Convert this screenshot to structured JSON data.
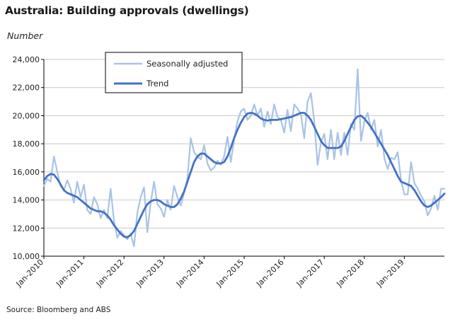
{
  "chart_data": {
    "type": "line",
    "title": "Australia: Building approvals (dwellings)",
    "ylabel": "Number",
    "ylim": [
      10000,
      24000
    ],
    "yticks": [
      10000,
      12000,
      14000,
      16000,
      18000,
      20000,
      22000,
      24000
    ],
    "ytick_labels": [
      "10,000",
      "12,000",
      "14,000",
      "16,000",
      "18,000",
      "20,000",
      "22,000",
      "24,000"
    ],
    "xlim": [
      "2010-01",
      "2020-01"
    ],
    "xticks": [
      "2010-01",
      "2011-01",
      "2012-01",
      "2013-01",
      "2014-01",
      "2015-01",
      "2016-01",
      "2017-01",
      "2018-01",
      "2019-01"
    ],
    "xtick_labels": [
      "Jan-2010",
      "Jan-2011",
      "Jan-2012",
      "Jan-2013",
      "Jan-2014",
      "Jan-2015",
      "Jan-2016",
      "Jan-2017",
      "Jan-2018",
      "Jan-2019"
    ],
    "grid": true,
    "legend_position": "top-center",
    "series": [
      {
        "name": "Seasonally adjusted",
        "color": "#a8c3e6",
        "points": [
          [
            "2010-01",
            15000
          ],
          [
            "2010-02",
            15500
          ],
          [
            "2010-03",
            15300
          ],
          [
            "2010-04",
            17100
          ],
          [
            "2010-05",
            16000
          ],
          [
            "2010-06",
            15000
          ],
          [
            "2010-07",
            14700
          ],
          [
            "2010-08",
            15400
          ],
          [
            "2010-09",
            14800
          ],
          [
            "2010-10",
            13800
          ],
          [
            "2010-11",
            15300
          ],
          [
            "2010-12",
            14200
          ],
          [
            "2011-01",
            15100
          ],
          [
            "2011-02",
            13300
          ],
          [
            "2011-03",
            13000
          ],
          [
            "2011-04",
            14200
          ],
          [
            "2011-05",
            13700
          ],
          [
            "2011-06",
            12700
          ],
          [
            "2011-07",
            13300
          ],
          [
            "2011-08",
            12700
          ],
          [
            "2011-09",
            14800
          ],
          [
            "2011-10",
            12500
          ],
          [
            "2011-11",
            11300
          ],
          [
            "2011-12",
            11800
          ],
          [
            "2012-01",
            11500
          ],
          [
            "2012-02",
            11200
          ],
          [
            "2012-03",
            11600
          ],
          [
            "2012-04",
            10700
          ],
          [
            "2012-05",
            13100
          ],
          [
            "2012-06",
            14200
          ],
          [
            "2012-07",
            14900
          ],
          [
            "2012-08",
            11700
          ],
          [
            "2012-09",
            13800
          ],
          [
            "2012-10",
            15300
          ],
          [
            "2012-11",
            13700
          ],
          [
            "2012-12",
            13400
          ],
          [
            "2013-01",
            12800
          ],
          [
            "2013-02",
            14000
          ],
          [
            "2013-03",
            13300
          ],
          [
            "2013-04",
            15000
          ],
          [
            "2013-05",
            14200
          ],
          [
            "2013-06",
            13600
          ],
          [
            "2013-07",
            14500
          ],
          [
            "2013-08",
            15500
          ],
          [
            "2013-09",
            18400
          ],
          [
            "2013-10",
            17400
          ],
          [
            "2013-11",
            17100
          ],
          [
            "2013-12",
            16900
          ],
          [
            "2014-01",
            17900
          ],
          [
            "2014-02",
            16600
          ],
          [
            "2014-03",
            16100
          ],
          [
            "2014-04",
            16300
          ],
          [
            "2014-05",
            16800
          ],
          [
            "2014-06",
            16500
          ],
          [
            "2014-07",
            17100
          ],
          [
            "2014-08",
            18500
          ],
          [
            "2014-09",
            16700
          ],
          [
            "2014-10",
            18300
          ],
          [
            "2014-11",
            19600
          ],
          [
            "2014-12",
            20300
          ],
          [
            "2015-01",
            20500
          ],
          [
            "2015-02",
            19700
          ],
          [
            "2015-03",
            20000
          ],
          [
            "2015-04",
            20800
          ],
          [
            "2015-05",
            20000
          ],
          [
            "2015-06",
            20500
          ],
          [
            "2015-07",
            19200
          ],
          [
            "2015-08",
            20300
          ],
          [
            "2015-09",
            19400
          ],
          [
            "2015-10",
            20800
          ],
          [
            "2015-11",
            19900
          ],
          [
            "2015-12",
            19700
          ],
          [
            "2016-01",
            18800
          ],
          [
            "2016-02",
            20400
          ],
          [
            "2016-03",
            18900
          ],
          [
            "2016-04",
            20800
          ],
          [
            "2016-05",
            20500
          ],
          [
            "2016-06",
            20100
          ],
          [
            "2016-07",
            18400
          ],
          [
            "2016-08",
            21000
          ],
          [
            "2016-09",
            21600
          ],
          [
            "2016-10",
            19600
          ],
          [
            "2016-11",
            16500
          ],
          [
            "2016-12",
            18100
          ],
          [
            "2017-01",
            18700
          ],
          [
            "2017-02",
            16900
          ],
          [
            "2017-03",
            19000
          ],
          [
            "2017-04",
            16900
          ],
          [
            "2017-05",
            18800
          ],
          [
            "2017-06",
            17200
          ],
          [
            "2017-07",
            18800
          ],
          [
            "2017-08",
            17200
          ],
          [
            "2017-09",
            19400
          ],
          [
            "2017-10",
            19000
          ],
          [
            "2017-11",
            23300
          ],
          [
            "2017-12",
            18200
          ],
          [
            "2018-01",
            19600
          ],
          [
            "2018-02",
            20200
          ],
          [
            "2018-03",
            19000
          ],
          [
            "2018-04",
            19700
          ],
          [
            "2018-05",
            17800
          ],
          [
            "2018-06",
            19000
          ],
          [
            "2018-07",
            17000
          ],
          [
            "2018-08",
            16200
          ],
          [
            "2018-09",
            17000
          ],
          [
            "2018-10",
            16900
          ],
          [
            "2018-11",
            17400
          ],
          [
            "2018-12",
            15400
          ],
          [
            "2019-01",
            14400
          ],
          [
            "2019-02",
            14400
          ],
          [
            "2019-03",
            16700
          ],
          [
            "2019-04",
            15200
          ],
          [
            "2019-05",
            14800
          ],
          [
            "2019-06",
            14300
          ],
          [
            "2019-07",
            13900
          ],
          [
            "2019-08",
            12900
          ],
          [
            "2019-09",
            13400
          ],
          [
            "2019-10",
            14300
          ],
          [
            "2019-11",
            13300
          ],
          [
            "2019-12",
            14800
          ],
          [
            "2020-01",
            14800
          ]
        ]
      },
      {
        "name": "Trend",
        "color": "#4472c4",
        "points": [
          [
            "2010-01",
            15400
          ],
          [
            "2010-02",
            15700
          ],
          [
            "2010-03",
            15850
          ],
          [
            "2010-04",
            15800
          ],
          [
            "2010-05",
            15500
          ],
          [
            "2010-06",
            15100
          ],
          [
            "2010-07",
            14700
          ],
          [
            "2010-08",
            14500
          ],
          [
            "2010-09",
            14400
          ],
          [
            "2010-10",
            14300
          ],
          [
            "2010-11",
            14200
          ],
          [
            "2010-12",
            14000
          ],
          [
            "2011-01",
            13800
          ],
          [
            "2011-02",
            13600
          ],
          [
            "2011-03",
            13400
          ],
          [
            "2011-04",
            13300
          ],
          [
            "2011-05",
            13200
          ],
          [
            "2011-06",
            13200
          ],
          [
            "2011-07",
            13100
          ],
          [
            "2011-08",
            12900
          ],
          [
            "2011-09",
            12600
          ],
          [
            "2011-10",
            12200
          ],
          [
            "2011-11",
            11900
          ],
          [
            "2011-12",
            11600
          ],
          [
            "2012-01",
            11400
          ],
          [
            "2012-02",
            11350
          ],
          [
            "2012-03",
            11500
          ],
          [
            "2012-04",
            11800
          ],
          [
            "2012-05",
            12300
          ],
          [
            "2012-06",
            12800
          ],
          [
            "2012-07",
            13300
          ],
          [
            "2012-08",
            13700
          ],
          [
            "2012-09",
            13900
          ],
          [
            "2012-10",
            14000
          ],
          [
            "2012-11",
            14000
          ],
          [
            "2012-12",
            13900
          ],
          [
            "2013-01",
            13700
          ],
          [
            "2013-02",
            13600
          ],
          [
            "2013-03",
            13500
          ],
          [
            "2013-04",
            13500
          ],
          [
            "2013-05",
            13700
          ],
          [
            "2013-06",
            14100
          ],
          [
            "2013-07",
            14600
          ],
          [
            "2013-08",
            15300
          ],
          [
            "2013-09",
            16000
          ],
          [
            "2013-10",
            16700
          ],
          [
            "2013-11",
            17100
          ],
          [
            "2013-12",
            17300
          ],
          [
            "2014-01",
            17300
          ],
          [
            "2014-02",
            17100
          ],
          [
            "2014-03",
            16900
          ],
          [
            "2014-04",
            16700
          ],
          [
            "2014-05",
            16600
          ],
          [
            "2014-06",
            16600
          ],
          [
            "2014-07",
            16700
          ],
          [
            "2014-08",
            17100
          ],
          [
            "2014-09",
            17700
          ],
          [
            "2014-10",
            18400
          ],
          [
            "2014-11",
            19000
          ],
          [
            "2014-12",
            19500
          ],
          [
            "2015-01",
            19900
          ],
          [
            "2015-02",
            20150
          ],
          [
            "2015-03",
            20200
          ],
          [
            "2015-04",
            20150
          ],
          [
            "2015-05",
            20000
          ],
          [
            "2015-06",
            19800
          ],
          [
            "2015-07",
            19700
          ],
          [
            "2015-08",
            19650
          ],
          [
            "2015-09",
            19700
          ],
          [
            "2015-10",
            19700
          ],
          [
            "2015-11",
            19700
          ],
          [
            "2015-12",
            19750
          ],
          [
            "2016-01",
            19800
          ],
          [
            "2016-02",
            19850
          ],
          [
            "2016-03",
            19900
          ],
          [
            "2016-04",
            20000
          ],
          [
            "2016-05",
            20100
          ],
          [
            "2016-06",
            20200
          ],
          [
            "2016-07",
            20200
          ],
          [
            "2016-08",
            20000
          ],
          [
            "2016-09",
            19700
          ],
          [
            "2016-10",
            19200
          ],
          [
            "2016-11",
            18700
          ],
          [
            "2016-12",
            18200
          ],
          [
            "2017-01",
            17900
          ],
          [
            "2017-02",
            17700
          ],
          [
            "2017-03",
            17700
          ],
          [
            "2017-04",
            17700
          ],
          [
            "2017-05",
            17700
          ],
          [
            "2017-06",
            17800
          ],
          [
            "2017-07",
            18200
          ],
          [
            "2017-08",
            18700
          ],
          [
            "2017-09",
            19200
          ],
          [
            "2017-10",
            19700
          ],
          [
            "2017-11",
            19950
          ],
          [
            "2017-12",
            20000
          ],
          [
            "2018-01",
            19800
          ],
          [
            "2018-02",
            19500
          ],
          [
            "2018-03",
            19200
          ],
          [
            "2018-04",
            18800
          ],
          [
            "2018-05",
            18400
          ],
          [
            "2018-06",
            18000
          ],
          [
            "2018-07",
            17600
          ],
          [
            "2018-08",
            17200
          ],
          [
            "2018-09",
            16700
          ],
          [
            "2018-10",
            16200
          ],
          [
            "2018-11",
            15700
          ],
          [
            "2018-12",
            15300
          ],
          [
            "2019-01",
            15200
          ],
          [
            "2019-02",
            15100
          ],
          [
            "2019-03",
            15000
          ],
          [
            "2019-04",
            14700
          ],
          [
            "2019-05",
            14300
          ],
          [
            "2019-06",
            13900
          ],
          [
            "2019-07",
            13600
          ],
          [
            "2019-08",
            13500
          ],
          [
            "2019-09",
            13600
          ],
          [
            "2019-10",
            13800
          ],
          [
            "2019-11",
            14000
          ],
          [
            "2019-12",
            14200
          ],
          [
            "2020-01",
            14450
          ]
        ]
      }
    ]
  },
  "source": "Source: Bloomberg and ABS"
}
